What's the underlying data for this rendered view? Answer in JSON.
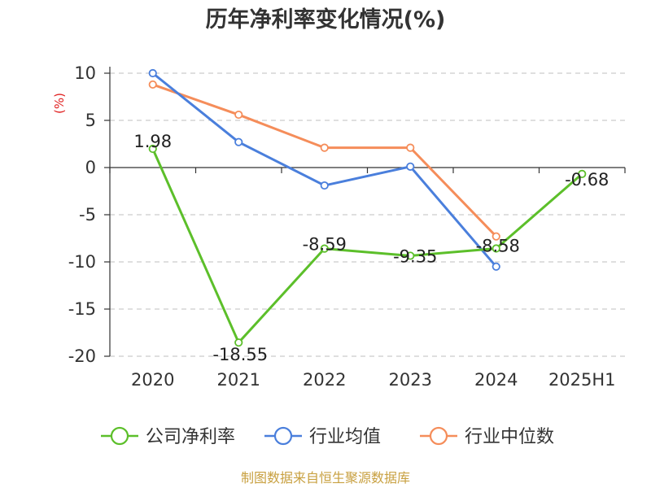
{
  "chart_data": {
    "type": "line",
    "title": "历年净利率变化情况(%)",
    "ylabel": "(%)",
    "categories": [
      "2020",
      "2021",
      "2022",
      "2023",
      "2024",
      "2025H1"
    ],
    "ylim": [
      -20,
      10
    ],
    "yticks": [
      10,
      5,
      0,
      -5,
      -10,
      -15,
      -20
    ],
    "grid": true,
    "legend_position": "bottom",
    "series": [
      {
        "name": "公司净利率",
        "color": "#5cbf2a",
        "values": [
          1.98,
          -18.55,
          -8.59,
          -9.35,
          -8.58,
          -0.68
        ],
        "labels": [
          "1.98",
          "-18.55",
          "-8.59",
          "-9.35",
          "-8.58",
          "-0.68"
        ]
      },
      {
        "name": "行业均值",
        "color": "#4a7fdc",
        "values": [
          10.0,
          2.7,
          -1.9,
          0.1,
          -10.5,
          null
        ]
      },
      {
        "name": "行业中位数",
        "color": "#f58d5a",
        "values": [
          8.8,
          5.6,
          2.1,
          2.1,
          -7.3,
          null
        ]
      }
    ]
  },
  "source": "制图数据来自恒生聚源数据库"
}
